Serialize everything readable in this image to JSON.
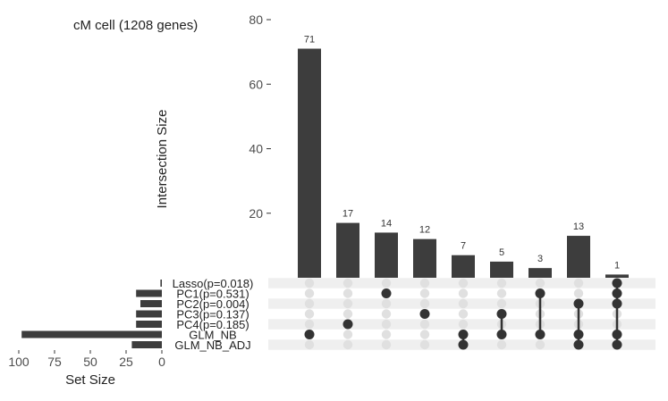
{
  "title": "cM cell (1208 genes)",
  "colors": {
    "bar": "#3d3d3d",
    "dot_active": "#333333",
    "dot_inactive": "#e0e0e0",
    "stripe": "#efefef"
  },
  "chart_data": [
    {
      "type": "bar",
      "name": "intersection_sizes",
      "ylabel": "Intersection Size",
      "ylim": [
        0,
        80
      ],
      "yticks": [
        20,
        40,
        60,
        80
      ],
      "values": [
        71,
        17,
        14,
        12,
        7,
        5,
        3,
        13,
        1
      ],
      "value_labels": [
        "71",
        "17",
        "14",
        "12",
        "7",
        "5",
        "3",
        "13",
        "1"
      ]
    },
    {
      "type": "bar",
      "name": "set_sizes",
      "orientation": "horizontal",
      "xlabel": "Set Size",
      "xlim": [
        100,
        0
      ],
      "xticks": [
        100,
        75,
        50,
        25,
        0
      ],
      "sets": [
        "Lasso(p=0.018)",
        "PC1(p=0.531)",
        "PC2(p=0.004)",
        "PC3(p=0.137)",
        "PC4(p=0.185)",
        "GLM_NB",
        "GLM_NB_ADJ"
      ],
      "values": [
        1,
        18,
        15,
        18,
        18,
        98,
        21
      ]
    },
    {
      "type": "table",
      "name": "intersection_matrix",
      "memberships": [
        [
          5
        ],
        [
          4
        ],
        [
          1
        ],
        [
          3
        ],
        [
          5,
          6
        ],
        [
          3,
          5
        ],
        [
          1,
          5
        ],
        [
          2,
          5,
          6
        ],
        [
          0,
          1,
          2,
          5,
          6
        ]
      ]
    }
  ]
}
